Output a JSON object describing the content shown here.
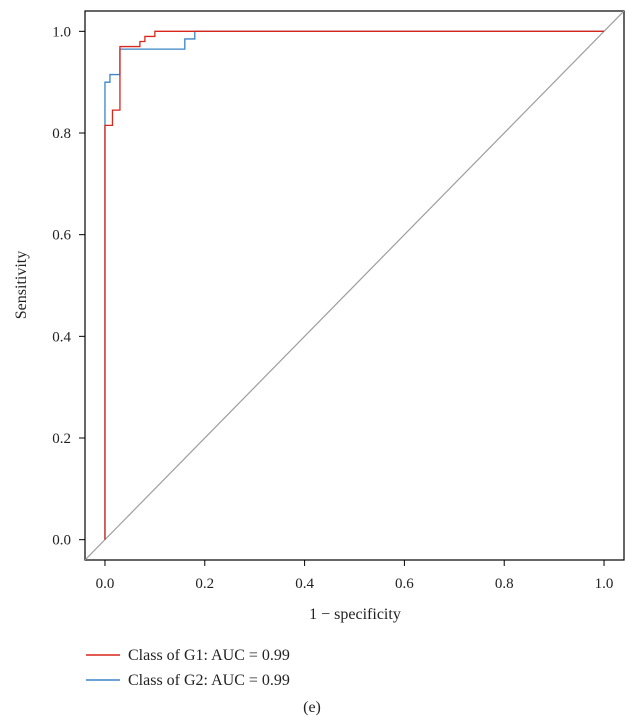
{
  "chart_data": {
    "type": "line",
    "xlabel": "1 − specificity",
    "ylabel": "Sensitivity",
    "xlim": [
      -0.04,
      1.04
    ],
    "ylim": [
      -0.04,
      1.04
    ],
    "x_ticks": [
      "0.0",
      "0.2",
      "0.4",
      "0.6",
      "0.8",
      "1.0"
    ],
    "y_ticks": [
      "0.0",
      "0.2",
      "0.4",
      "0.6",
      "0.8",
      "1.0"
    ],
    "grid": false,
    "legend_position": "bottom-left, below plot",
    "reference_line": {
      "x": [
        0,
        1
      ],
      "y": [
        0,
        1
      ],
      "color": "#9e9e9e"
    },
    "series": [
      {
        "name": "Class of G1: AUC = 0.99",
        "color": "#d9261c",
        "x": [
          0,
          0,
          0.015,
          0.015,
          0.02,
          0.02,
          0.03,
          0.03,
          0.07,
          0.07,
          0.08,
          0.08,
          0.1,
          0.1,
          1.0
        ],
        "y": [
          0,
          0.815,
          0.815,
          0.845,
          0.845,
          0.845,
          0.845,
          0.97,
          0.97,
          0.98,
          0.98,
          0.99,
          0.99,
          1.0,
          1.0
        ]
      },
      {
        "name": "Class of G2: AUC = 0.99",
        "color": "#3a85c6",
        "x": [
          0,
          0,
          0.01,
          0.01,
          0.02,
          0.02,
          0.03,
          0.03,
          0.16,
          0.16,
          0.18,
          0.18,
          1.0
        ],
        "y": [
          0,
          0.9,
          0.9,
          0.915,
          0.915,
          0.915,
          0.915,
          0.965,
          0.965,
          0.985,
          0.985,
          1.0,
          1.0
        ]
      }
    ]
  },
  "caption": "(e)"
}
